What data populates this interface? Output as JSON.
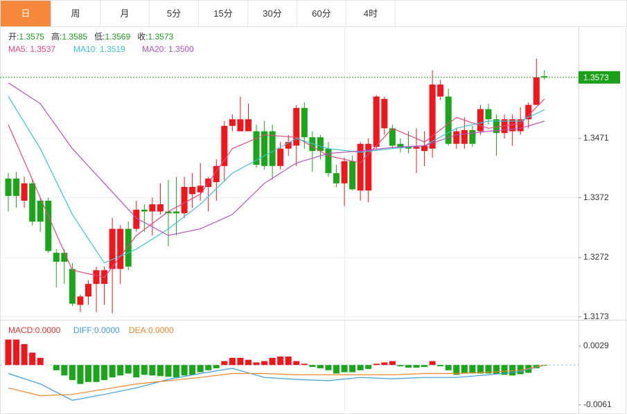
{
  "tabs": {
    "items": [
      "日",
      "周",
      "月",
      "5分",
      "15分",
      "30分",
      "60分",
      "4时"
    ],
    "active": 0
  },
  "chart_data": [
    {
      "type": "candlestick",
      "info": [
        {
          "label": "开:",
          "value": "1.3575"
        },
        {
          "label": "高:",
          "value": "1.3585"
        },
        {
          "label": "低:",
          "value": "1.3569"
        },
        {
          "label": "收:",
          "value": "1.3573"
        }
      ],
      "info_color": "#1e9a1e",
      "up_color": "#f0161b",
      "down_color": "#1aa51a",
      "open": [
        1.3404,
        1.3404,
        1.3367,
        1.3396,
        1.3367,
        1.3367,
        1.328,
        1.328,
        1.3253,
        1.3193,
        1.3207,
        1.3228,
        1.3228,
        1.3253,
        1.3253,
        1.332,
        1.332,
        1.3352,
        1.3349,
        1.3349,
        1.3349,
        1.3349,
        1.3346,
        1.3378,
        1.3381,
        1.339,
        1.3398,
        1.3425,
        1.3492,
        1.3483,
        1.3483,
        1.3483,
        1.3483,
        1.3483,
        1.3425,
        1.3454,
        1.3459,
        1.3522,
        1.3473,
        1.3473,
        1.3454,
        1.3413,
        1.3396,
        1.3433,
        1.3384,
        1.3384,
        1.3457,
        1.3488,
        1.3488,
        1.3462,
        1.3457,
        1.3454,
        1.345,
        1.3454,
        1.3541,
        1.3541,
        1.3462,
        1.3462,
        1.3485,
        1.3483,
        1.352,
        1.3503,
        1.348,
        1.3483,
        1.3483,
        1.3503,
        1.3527,
        1.3575
      ],
      "high": [
        1.3413,
        1.3415,
        1.3407,
        1.3402,
        1.3372,
        1.3372,
        1.3286,
        1.3286,
        1.3263,
        1.321,
        1.3234,
        1.3257,
        1.3257,
        1.3338,
        1.3326,
        1.3332,
        1.3367,
        1.3361,
        1.3372,
        1.3396,
        1.3402,
        1.3407,
        1.3407,
        1.3413,
        1.343,
        1.3407,
        1.3436,
        1.35,
        1.3511,
        1.3541,
        1.3529,
        1.3494,
        1.35,
        1.3494,
        1.3465,
        1.3477,
        1.3527,
        1.3531,
        1.3483,
        1.3477,
        1.3465,
        1.3427,
        1.3439,
        1.3442,
        1.3465,
        1.3471,
        1.3543,
        1.3541,
        1.3494,
        1.3471,
        1.3483,
        1.3488,
        1.3483,
        1.3585,
        1.3569,
        1.3554,
        1.3488,
        1.3506,
        1.3492,
        1.3527,
        1.3529,
        1.3511,
        1.3511,
        1.3511,
        1.3523,
        1.3531,
        1.3604,
        1.3585
      ],
      "low": [
        1.3349,
        1.3355,
        1.3355,
        1.3326,
        1.3315,
        1.328,
        1.3222,
        1.3228,
        1.3191,
        1.3181,
        1.3193,
        1.3181,
        1.3193,
        1.3179,
        1.3228,
        1.3251,
        1.3315,
        1.3315,
        1.3309,
        1.3344,
        1.3291,
        1.3309,
        1.3338,
        1.3355,
        1.3367,
        1.3349,
        1.3367,
        1.3399,
        1.3483,
        1.3483,
        1.3483,
        1.3422,
        1.3419,
        1.3402,
        1.3419,
        1.3442,
        1.3425,
        1.3454,
        1.3415,
        1.3436,
        1.3407,
        1.339,
        1.3358,
        1.3384,
        1.3367,
        1.3364,
        1.3454,
        1.3477,
        1.3454,
        1.3448,
        1.3446,
        1.3413,
        1.3425,
        1.3439,
        1.3535,
        1.3459,
        1.3454,
        1.3454,
        1.3457,
        1.3477,
        1.3494,
        1.3442,
        1.3471,
        1.3459,
        1.3477,
        1.3488,
        1.3527,
        1.3569
      ],
      "close": [
        1.3375,
        1.3375,
        1.3396,
        1.3332,
        1.3332,
        1.3283,
        1.3265,
        1.3265,
        1.3195,
        1.3207,
        1.3228,
        1.3251,
        1.3251,
        1.332,
        1.332,
        1.3257,
        1.3352,
        1.3349,
        1.3361,
        1.3361,
        1.3346,
        1.3346,
        1.339,
        1.339,
        1.3392,
        1.3404,
        1.3425,
        1.3492,
        1.3503,
        1.3503,
        1.3503,
        1.3427,
        1.3425,
        1.3425,
        1.3454,
        1.3465,
        1.3522,
        1.3473,
        1.345,
        1.345,
        1.3413,
        1.3396,
        1.3433,
        1.3386,
        1.3462,
        1.3462,
        1.3541,
        1.3537,
        1.3459,
        1.3456,
        1.3454,
        1.3457,
        1.3459,
        1.3561,
        1.3561,
        1.3462,
        1.3483,
        1.3485,
        1.3462,
        1.352,
        1.3503,
        1.348,
        1.3503,
        1.3503,
        1.3503,
        1.3527,
        1.3573,
        1.3573
      ],
      "series": [
        {
          "name": "MA5: 1.3537",
          "color": "#e8467c",
          "x": [
            0,
            4,
            8,
            12,
            16,
            20,
            24,
            28,
            32,
            36,
            40,
            44,
            48,
            52,
            56,
            60,
            64,
            67
          ],
          "values": [
            1.3494,
            1.3372,
            1.3251,
            1.3239,
            1.3309,
            1.3349,
            1.3378,
            1.3454,
            1.3477,
            1.3473,
            1.3442,
            1.343,
            1.3488,
            1.3465,
            1.3506,
            1.3488,
            1.3496,
            1.3537
          ]
        },
        {
          "name": "MA10: 1.3519",
          "color": "#3cc0d6",
          "x": [
            0,
            4,
            8,
            12,
            16,
            20,
            24,
            28,
            32,
            36,
            40,
            44,
            48,
            52,
            56,
            60,
            64,
            67
          ],
          "values": [
            1.3541,
            1.3454,
            1.3344,
            1.3263,
            1.3286,
            1.332,
            1.3361,
            1.3413,
            1.3442,
            1.3471,
            1.3454,
            1.3448,
            1.3454,
            1.3459,
            1.3488,
            1.35,
            1.35,
            1.3519
          ]
        },
        {
          "name": "MA20: 1.3500",
          "color": "#b84fc0",
          "x": [
            0,
            4,
            8,
            12,
            16,
            20,
            24,
            28,
            32,
            36,
            40,
            44,
            48,
            52,
            56,
            60,
            64,
            67
          ],
          "values": [
            1.3564,
            1.3529,
            1.3454,
            1.3396,
            1.3338,
            1.3309,
            1.332,
            1.3344,
            1.3396,
            1.343,
            1.3446,
            1.345,
            1.3456,
            1.3459,
            1.3477,
            1.3483,
            1.3488,
            1.35
          ]
        }
      ],
      "last_price": {
        "value": 1.3573,
        "label": "1.3573",
        "color": "#19a119"
      },
      "ylim": [
        1.3168,
        1.3656
      ],
      "yticks": [
        1.3471,
        1.3372,
        1.3272,
        1.3173
      ],
      "grid": true
    },
    {
      "type": "macd",
      "histogram": {
        "name": "MACD:0.0000",
        "color": "#e8322f",
        "up_color": "#f0161b",
        "down_color": "#1aa51a",
        "values": [
          0.0039,
          0.0039,
          0.0032,
          0.0019,
          0.0011,
          0,
          -0.0008,
          -0.0016,
          -0.0023,
          -0.0029,
          -0.0026,
          -0.0026,
          -0.0023,
          -0.0019,
          -0.0016,
          -0.0013,
          -0.0019,
          -0.0015,
          -0.0016,
          -0.0017,
          -0.0018,
          -0.0019,
          -0.0016,
          -0.0015,
          -0.0011,
          -0.0008,
          -0.0005,
          0.0006,
          0.0011,
          0.0011,
          0.0008,
          0.0004,
          0.0006,
          0.0011,
          0.0013,
          0.0013,
          0.0006,
          0.0002,
          -0.0003,
          -0.0005,
          -0.0008,
          -0.0013,
          -0.0011,
          -0.0011,
          -0.0008,
          -0.0006,
          0.0002,
          0.0004,
          0.0006,
          -0.0002,
          -0.0004,
          -0.0004,
          -0.0003,
          0.0006,
          -0.0002,
          -0.0008,
          -0.0015,
          -0.0013,
          -0.0013,
          -0.0013,
          -0.0013,
          -0.0014,
          -0.0015,
          -0.0016,
          -0.0014,
          -0.0012,
          -0.0005,
          -0.0001
        ]
      },
      "series": [
        {
          "name": "DIFF:0.0000",
          "color": "#3d9de0",
          "x": [
            0,
            4,
            8,
            12,
            16,
            20,
            24,
            28,
            32,
            36,
            40,
            44,
            48,
            52,
            56,
            60,
            64,
            67
          ],
          "values": [
            -0.0013,
            -0.0029,
            -0.0054,
            -0.0045,
            -0.0035,
            -0.0022,
            -0.0013,
            -0.0005,
            -0.0019,
            -0.0022,
            -0.0024,
            -0.0019,
            -0.0021,
            -0.0019,
            -0.0019,
            -0.0015,
            -0.001,
            0
          ]
        },
        {
          "name": "DEA:0.0000",
          "color": "#f0862a",
          "x": [
            0,
            4,
            8,
            12,
            16,
            20,
            24,
            28,
            32,
            36,
            40,
            44,
            48,
            52,
            56,
            60,
            64,
            67
          ],
          "values": [
            -0.0035,
            -0.0047,
            -0.0045,
            -0.0037,
            -0.0029,
            -0.0024,
            -0.0019,
            -0.0013,
            -0.0013,
            -0.0015,
            -0.0015,
            -0.0015,
            -0.0015,
            -0.0013,
            -0.0013,
            -0.0011,
            -0.0008,
            0
          ]
        }
      ],
      "ylim": [
        -0.0075,
        0.0066
      ],
      "yticks": [
        0.0029,
        -0.0061
      ]
    }
  ]
}
